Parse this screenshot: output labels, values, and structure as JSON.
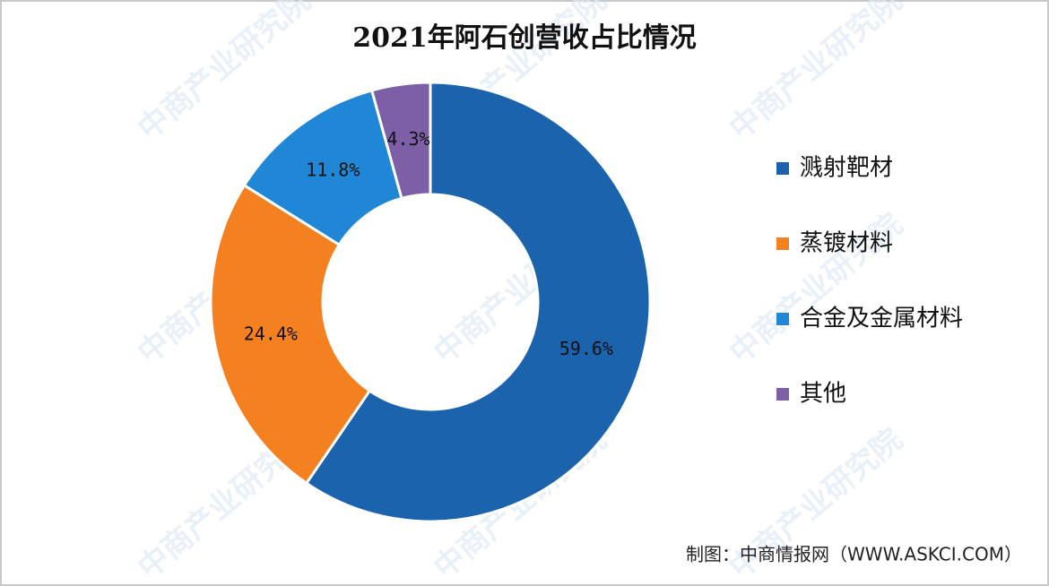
{
  "chart_data": {
    "type": "donut",
    "title": "2021年阿石创营收占比情况",
    "categories": [
      "溅射靶材",
      "蒸镀材料",
      "合金及金属材料",
      "其他"
    ],
    "values": [
      59.6,
      24.4,
      11.8,
      4.3
    ],
    "value_labels": [
      "59.6%",
      "24.4%",
      "11.8%",
      "4.3%"
    ],
    "colors": [
      "#1c63ad",
      "#f5801f",
      "#1f87d6",
      "#7c5fa6"
    ],
    "legend": "right",
    "source": "制图：中商情报网（WWW.ASKCI.COM）",
    "watermark": "中商产业研究院"
  }
}
